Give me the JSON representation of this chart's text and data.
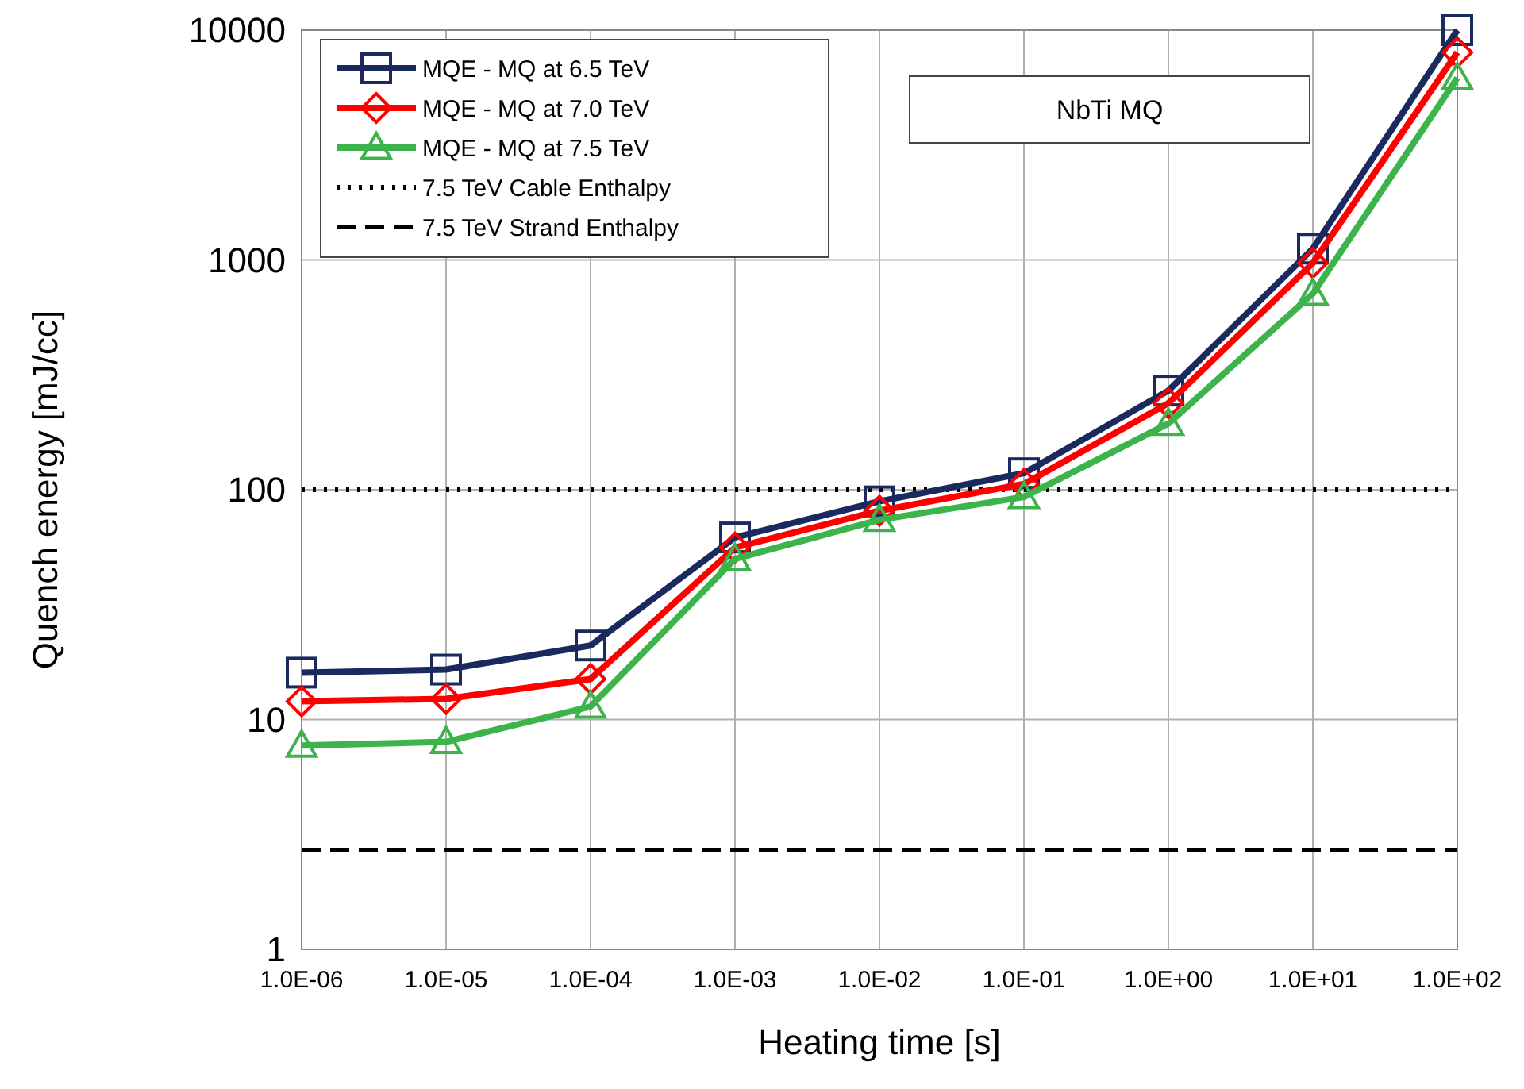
{
  "chart_data": {
    "type": "line",
    "xlabel": "Heating time [s]",
    "ylabel": "Quench energy [mJ/cc]",
    "x": [
      1e-06,
      1e-05,
      0.0001,
      0.001,
      0.01,
      0.1,
      1,
      10,
      100
    ],
    "series": [
      {
        "name": "MQE - MQ at 6.5 TeV",
        "color": "#1b2a5e",
        "marker": "square",
        "values": [
          16,
          16.5,
          21,
          62,
          89,
          118,
          270,
          1120,
          10000
        ]
      },
      {
        "name": "MQE - MQ at 7.0 TeV",
        "color": "#ff0000",
        "marker": "diamond",
        "values": [
          12,
          12.3,
          15,
          56,
          81,
          106,
          238,
          970,
          8000
        ]
      },
      {
        "name": "MQE - MQ at 7.5 TeV",
        "color": "#3cb44b",
        "marker": "triangle",
        "values": [
          7.7,
          8,
          11.4,
          50,
          74,
          93,
          194,
          713,
          6200
        ]
      }
    ],
    "ref_lines": [
      {
        "axis": "y",
        "value": 100,
        "label": "7.5 TeV Cable Enthalpy",
        "color": "#000000",
        "line_style": "dotted"
      },
      {
        "axis": "y",
        "value": 2.7,
        "label": "7.5 TeV Strand Enthalpy",
        "color": "#000000",
        "line_style": "dashed"
      }
    ],
    "annotations": [
      "NbTi MQ"
    ],
    "log": "xy",
    "grid": true,
    "legend": "top left",
    "xlim": [
      1e-06,
      100
    ],
    "ylim": [
      1,
      10000
    ],
    "xticks": [
      {
        "value": 1e-06,
        "label": "1.0E-06"
      },
      {
        "value": 1e-05,
        "label": "1.0E-05"
      },
      {
        "value": 0.0001,
        "label": "1.0E-04"
      },
      {
        "value": 0.001,
        "label": "1.0E-03"
      },
      {
        "value": 0.01,
        "label": "1.0E-02"
      },
      {
        "value": 0.1,
        "label": "1.0E-01"
      },
      {
        "value": 1,
        "label": "1.0E+00"
      },
      {
        "value": 10,
        "label": "1.0E+01"
      },
      {
        "value": 100,
        "label": "1.0E+02"
      }
    ],
    "yticks": [
      1,
      10,
      100,
      1000,
      10000
    ]
  }
}
